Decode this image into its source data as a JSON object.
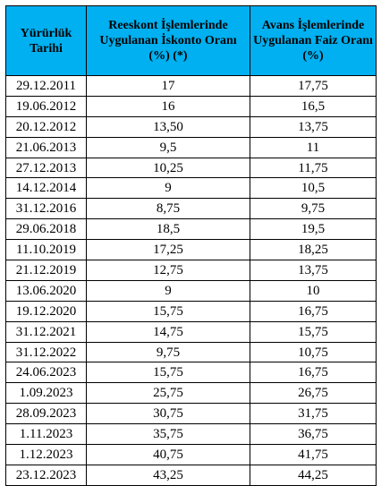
{
  "table": {
    "headers": [
      "Yürürlük Tarihi",
      "Reeskont İşlemlerinde Uygulanan İskonto Oranı (%) (*)",
      "Avans İşlemlerinde Uygulanan Faiz Oranı (%)"
    ],
    "rows": [
      [
        "29.12.2011",
        "17",
        "17,75"
      ],
      [
        "19.06.2012",
        "16",
        "16,5"
      ],
      [
        "20.12.2012",
        "13,50",
        "13,75"
      ],
      [
        "21.06.2013",
        "9,5",
        "11"
      ],
      [
        "27.12.2013",
        "10,25",
        "11,75"
      ],
      [
        "14.12.2014",
        "9",
        "10,5"
      ],
      [
        "31.12.2016",
        "8,75",
        "9,75"
      ],
      [
        "29.06.2018",
        "18,5",
        "19,5"
      ],
      [
        "11.10.2019",
        "17,25",
        "18,25"
      ],
      [
        "21.12.2019",
        "12,75",
        "13,75"
      ],
      [
        "13.06.2020",
        "9",
        "10"
      ],
      [
        "19.12.2020",
        "15,75",
        "16,75"
      ],
      [
        "31.12.2021",
        "14,75",
        "15,75"
      ],
      [
        "31.12.2022",
        "9,75",
        "10,75"
      ],
      [
        "24.06.2023",
        "15,75",
        "16,75"
      ],
      [
        "1.09.2023",
        "25,75",
        "26,75"
      ],
      [
        "28.09.2023",
        "30,75",
        "31,75"
      ],
      [
        "1.11.2023",
        "35,75",
        "36,75"
      ],
      [
        "1.12.2023",
        "40,75",
        "41,75"
      ],
      [
        "23.12.2023",
        "43,25",
        "44,25"
      ]
    ]
  },
  "colors": {
    "header_background": "#00b0f0",
    "border": "#000000"
  }
}
